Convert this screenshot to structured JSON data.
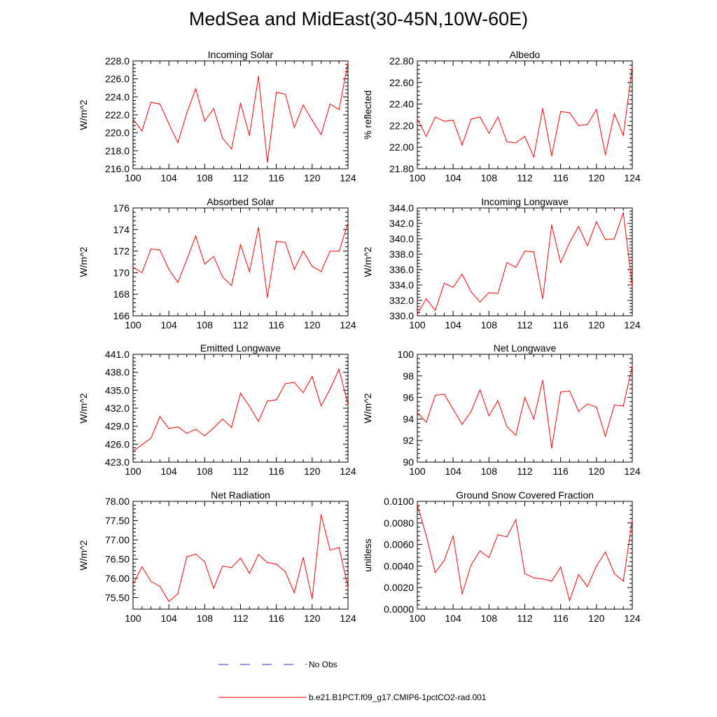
{
  "title": "MedSea and MidEast(30-45N,10W-60E)",
  "colors": {
    "series": "#ff0000",
    "obs": "#3333cc",
    "axis": "#000000"
  },
  "legend": {
    "obs_label": "No Obs",
    "model_label": "b.e21.B1PCT.f09_g17.CMIP6-1pctCO2-rad.001"
  },
  "chart_data": [
    {
      "type": "line",
      "title": "Incoming Solar",
      "xlabel": "",
      "ylabel": "W/m^2",
      "xlim": [
        100,
        124
      ],
      "ylim": [
        216,
        228
      ],
      "xticks": [
        100,
        104,
        108,
        112,
        116,
        120,
        124
      ],
      "yticks": [
        216,
        218,
        220,
        222,
        224,
        226,
        228
      ],
      "ytick_labels": [
        "216.0",
        "218.0",
        "220.0",
        "222.0",
        "224.0",
        "226.0",
        "228.0"
      ],
      "x": [
        100,
        101,
        102,
        103,
        104,
        105,
        106,
        107,
        108,
        109,
        110,
        111,
        112,
        113,
        114,
        115,
        116,
        117,
        118,
        119,
        120,
        121,
        122,
        123,
        124
      ],
      "values": [
        221.5,
        220.2,
        223.4,
        223.2,
        221.0,
        218.9,
        222.2,
        224.9,
        221.3,
        222.7,
        219.4,
        218.2,
        223.3,
        219.7,
        226.3,
        216.7,
        224.5,
        224.3,
        220.6,
        223.1,
        221.4,
        219.8,
        223.2,
        222.6,
        227.8
      ]
    },
    {
      "type": "line",
      "title": "Albedo",
      "xlabel": "",
      "ylabel": "% reflected",
      "xlim": [
        100,
        124
      ],
      "ylim": [
        21.8,
        22.8
      ],
      "xticks": [
        100,
        104,
        108,
        112,
        116,
        120,
        124
      ],
      "yticks": [
        21.8,
        22.0,
        22.2,
        22.4,
        22.6,
        22.8
      ],
      "ytick_labels": [
        "21.80",
        "22.00",
        "22.20",
        "22.40",
        "22.60",
        "22.80"
      ],
      "x": [
        100,
        101,
        102,
        103,
        104,
        105,
        106,
        107,
        108,
        109,
        110,
        111,
        112,
        113,
        114,
        115,
        116,
        117,
        118,
        119,
        120,
        121,
        122,
        123,
        124
      ],
      "values": [
        22.26,
        22.1,
        22.28,
        22.24,
        22.25,
        22.02,
        22.26,
        22.28,
        22.13,
        22.28,
        22.05,
        22.04,
        22.1,
        21.91,
        22.36,
        21.92,
        22.33,
        22.32,
        22.2,
        22.21,
        22.35,
        21.93,
        22.31,
        22.11,
        22.75
      ]
    },
    {
      "type": "line",
      "title": "Absorbed Solar",
      "xlabel": "",
      "ylabel": "W/m^2",
      "xlim": [
        100,
        124
      ],
      "ylim": [
        166,
        176
      ],
      "xticks": [
        100,
        104,
        108,
        112,
        116,
        120,
        124
      ],
      "yticks": [
        166,
        168,
        170,
        172,
        174,
        176
      ],
      "ytick_labels": [
        "166",
        "168",
        "170",
        "172",
        "174",
        "176"
      ],
      "x": [
        100,
        101,
        102,
        103,
        104,
        105,
        106,
        107,
        108,
        109,
        110,
        111,
        112,
        113,
        114,
        115,
        116,
        117,
        118,
        119,
        120,
        121,
        122,
        123,
        124
      ],
      "values": [
        170.5,
        170.0,
        172.2,
        172.1,
        170.3,
        169.1,
        171.2,
        173.4,
        170.8,
        171.5,
        169.6,
        168.8,
        172.6,
        170.1,
        174.2,
        167.7,
        172.9,
        172.8,
        170.3,
        172.0,
        170.6,
        170.1,
        172.0,
        172.0,
        174.6
      ]
    },
    {
      "type": "line",
      "title": "Incoming Longwave",
      "xlabel": "",
      "ylabel": "W/m^2",
      "xlim": [
        100,
        124
      ],
      "ylim": [
        330,
        344
      ],
      "xticks": [
        100,
        104,
        108,
        112,
        116,
        120,
        124
      ],
      "yticks": [
        330,
        332,
        334,
        336,
        338,
        340,
        342,
        344
      ],
      "ytick_labels": [
        "330.0",
        "332.0",
        "334.0",
        "336.0",
        "338.0",
        "340.0",
        "342.0",
        "344.0"
      ],
      "x": [
        100,
        101,
        102,
        103,
        104,
        105,
        106,
        107,
        108,
        109,
        110,
        111,
        112,
        113,
        114,
        115,
        116,
        117,
        118,
        119,
        120,
        121,
        122,
        123,
        124
      ],
      "values": [
        330.2,
        332.2,
        330.7,
        334.2,
        333.7,
        335.4,
        333.1,
        331.8,
        333.0,
        332.9,
        336.9,
        336.3,
        338.4,
        338.3,
        332.2,
        341.8,
        336.9,
        339.5,
        341.6,
        339.1,
        342.2,
        339.9,
        340.0,
        343.4,
        333.8
      ]
    },
    {
      "type": "line",
      "title": "Emitted Longwave",
      "xlabel": "",
      "ylabel": "W/m^2",
      "xlim": [
        100,
        124
      ],
      "ylim": [
        423,
        441
      ],
      "xticks": [
        100,
        104,
        108,
        112,
        116,
        120,
        124
      ],
      "yticks": [
        423,
        426,
        429,
        432,
        435,
        438,
        441
      ],
      "ytick_labels": [
        "423.0",
        "426.0",
        "429.0",
        "432.0",
        "435.0",
        "438.0",
        "441.0"
      ],
      "x": [
        100,
        101,
        102,
        103,
        104,
        105,
        106,
        107,
        108,
        109,
        110,
        111,
        112,
        113,
        114,
        115,
        116,
        117,
        118,
        119,
        120,
        121,
        122,
        123,
        124
      ],
      "values": [
        424.8,
        425.9,
        427.0,
        430.6,
        428.6,
        428.9,
        427.8,
        428.5,
        427.4,
        428.7,
        430.2,
        428.8,
        434.5,
        432.3,
        429.8,
        433.2,
        433.4,
        436.1,
        436.3,
        434.6,
        437.3,
        432.4,
        435.2,
        438.5,
        432.6
      ]
    },
    {
      "type": "line",
      "title": "Net Longwave",
      "xlabel": "",
      "ylabel": "W/m^2",
      "xlim": [
        100,
        124
      ],
      "ylim": [
        90,
        100
      ],
      "xticks": [
        100,
        104,
        108,
        112,
        116,
        120,
        124
      ],
      "yticks": [
        90,
        92,
        94,
        96,
        98,
        100
      ],
      "ytick_labels": [
        "90",
        "92",
        "94",
        "96",
        "98",
        "100"
      ],
      "x": [
        100,
        101,
        102,
        103,
        104,
        105,
        106,
        107,
        108,
        109,
        110,
        111,
        112,
        113,
        114,
        115,
        116,
        117,
        118,
        119,
        120,
        121,
        122,
        123,
        124
      ],
      "values": [
        94.6,
        93.7,
        96.2,
        96.3,
        94.9,
        93.5,
        94.7,
        96.7,
        94.3,
        95.7,
        93.3,
        92.5,
        96.0,
        94.0,
        97.6,
        91.3,
        96.5,
        96.6,
        94.7,
        95.4,
        95.1,
        92.4,
        95.3,
        95.2,
        98.9
      ]
    },
    {
      "type": "line",
      "title": "Net Radiation",
      "xlabel": "",
      "ylabel": "W/m^2",
      "xlim": [
        100,
        124
      ],
      "ylim": [
        75.2,
        78.0
      ],
      "xticks": [
        100,
        104,
        108,
        112,
        116,
        120,
        124
      ],
      "yticks": [
        75.5,
        76.0,
        76.5,
        77.0,
        77.5,
        78.0
      ],
      "ytick_labels": [
        "75.50",
        "76.00",
        "76.50",
        "77.00",
        "77.50",
        "78.00"
      ],
      "x": [
        100,
        101,
        102,
        103,
        104,
        105,
        106,
        107,
        108,
        109,
        110,
        111,
        112,
        113,
        114,
        115,
        116,
        117,
        118,
        119,
        120,
        121,
        122,
        123,
        124
      ],
      "values": [
        75.85,
        76.3,
        75.92,
        75.79,
        75.4,
        75.6,
        76.56,
        76.63,
        76.43,
        75.74,
        76.32,
        76.28,
        76.53,
        76.13,
        76.62,
        76.41,
        76.37,
        76.17,
        75.63,
        76.54,
        75.47,
        77.65,
        76.73,
        76.8,
        75.77
      ]
    },
    {
      "type": "line",
      "title": "Ground Snow Covered Fraction",
      "xlabel": "",
      "ylabel": "unitless",
      "xlim": [
        100,
        124
      ],
      "ylim": [
        0,
        0.01
      ],
      "xticks": [
        100,
        104,
        108,
        112,
        116,
        120,
        124
      ],
      "yticks": [
        0,
        0.002,
        0.004,
        0.006,
        0.008,
        0.01
      ],
      "ytick_labels": [
        "0.0000",
        "0.0020",
        "0.0040",
        "0.0060",
        "0.0080",
        "0.0100"
      ],
      "x": [
        100,
        101,
        102,
        103,
        104,
        105,
        106,
        107,
        108,
        109,
        110,
        111,
        112,
        113,
        114,
        115,
        116,
        117,
        118,
        119,
        120,
        121,
        122,
        123,
        124
      ],
      "values": [
        0.0097,
        0.0068,
        0.0034,
        0.0045,
        0.0068,
        0.0014,
        0.0041,
        0.0054,
        0.0048,
        0.0069,
        0.0067,
        0.0083,
        0.0033,
        0.0029,
        0.0028,
        0.0026,
        0.0039,
        0.0008,
        0.0032,
        0.0021,
        0.004,
        0.0053,
        0.0033,
        0.0026,
        0.0083
      ]
    }
  ]
}
